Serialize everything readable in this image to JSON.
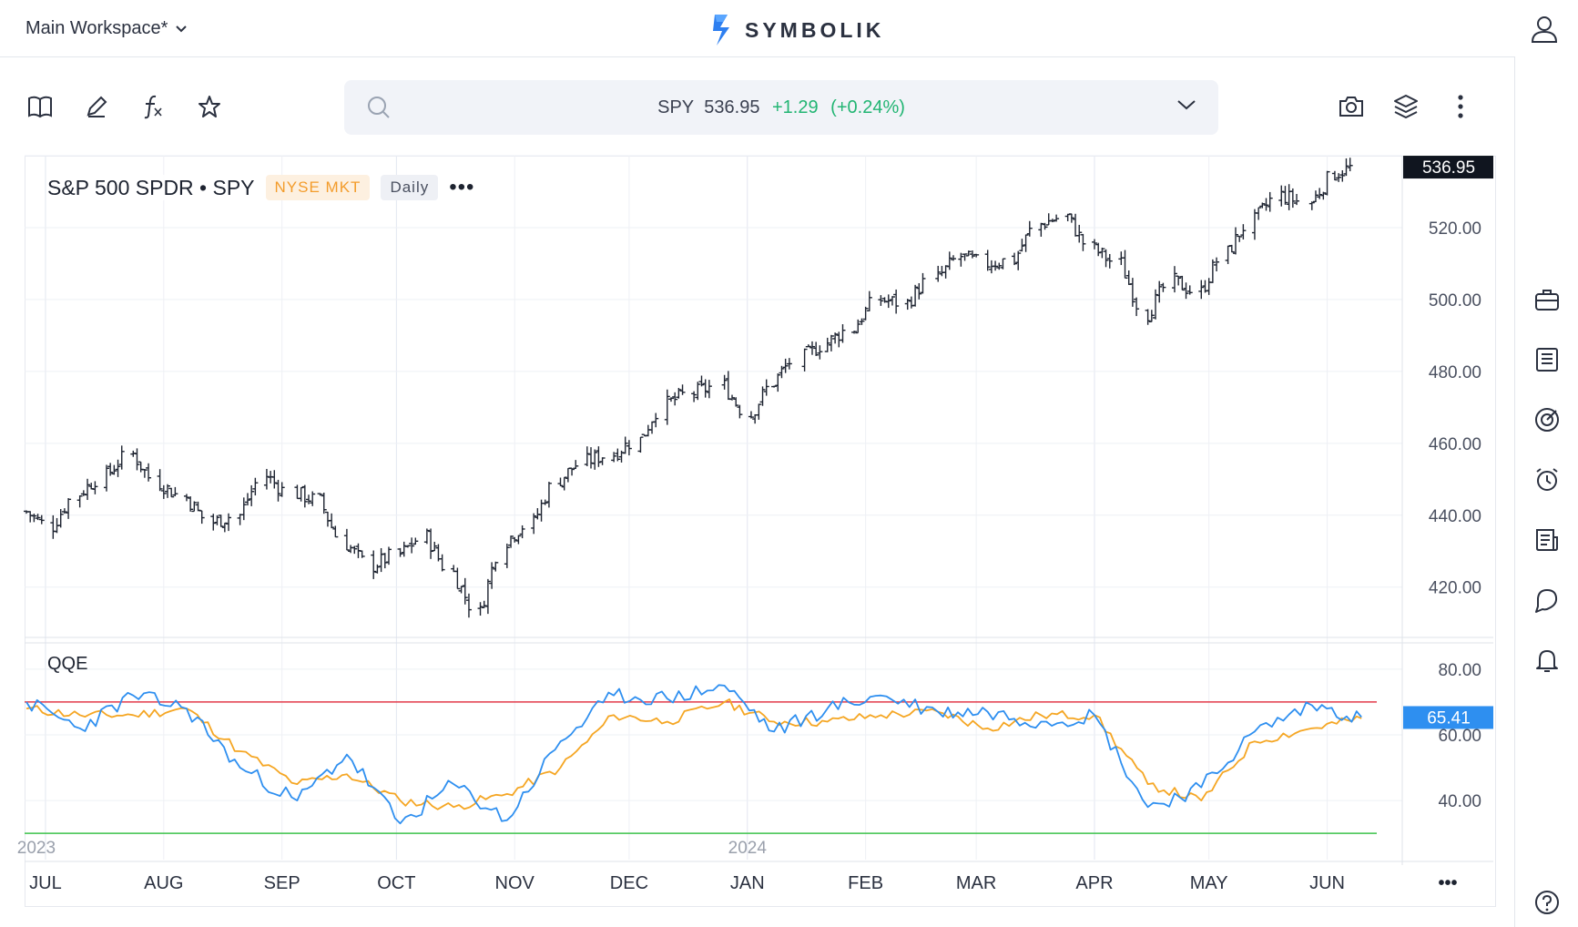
{
  "header": {
    "workspace": "Main Workspace*",
    "brand": "SYMBOLIK"
  },
  "search": {
    "symbol": "SPY",
    "price": "536.95",
    "change": "+1.29",
    "change_pct": "(+0.24%)"
  },
  "legend": {
    "title": "S&P 500 SPDR • SPY",
    "exchange": "NYSE MKT",
    "interval": "Daily",
    "more": "•••"
  },
  "indicator": {
    "name": "QQE"
  },
  "x_axis": {
    "months": [
      "JUL",
      "AUG",
      "SEP",
      "OCT",
      "NOV",
      "DEC",
      "JAN",
      "FEB",
      "MAR",
      "APR",
      "MAY",
      "JUN"
    ],
    "years": [
      "2023",
      "2024"
    ],
    "more": "•••"
  },
  "price_axis": {
    "labels": [
      "520.00",
      "500.00",
      "480.00",
      "460.00",
      "440.00",
      "420.00"
    ],
    "last_price": "536.95"
  },
  "qqe_axis": {
    "labels": [
      "80.00",
      "60.00",
      "40.00"
    ],
    "last_value": "65.41"
  },
  "colors": {
    "positive": "#22b573",
    "exchange": "#f39c2b",
    "qqe_fast": "#2e8ff0",
    "qqe_slow": "#f5a623",
    "upper_line": "#e23a4a",
    "lower_line": "#3cc24a",
    "price_tag_bg": "#10151f",
    "qqe_tag_bg": "#2e8ff0"
  },
  "chart_data": [
    {
      "type": "line",
      "subtype": "ohlc-bars",
      "title": "S&P 500 SPDR • SPY",
      "series": [
        {
          "name": "SPY",
          "x": [
            "2023-06-26",
            "2023-07-03",
            "2023-07-10",
            "2023-07-17",
            "2023-07-24",
            "2023-07-31",
            "2023-08-07",
            "2023-08-14",
            "2023-08-21",
            "2023-08-28",
            "2023-09-05",
            "2023-09-11",
            "2023-09-18",
            "2023-09-25",
            "2023-10-02",
            "2023-10-09",
            "2023-10-16",
            "2023-10-23",
            "2023-10-30",
            "2023-11-06",
            "2023-11-13",
            "2023-11-20",
            "2023-11-27",
            "2023-12-04",
            "2023-12-11",
            "2023-12-18",
            "2023-12-26",
            "2024-01-02",
            "2024-01-08",
            "2024-01-16",
            "2024-01-22",
            "2024-01-29",
            "2024-02-05",
            "2024-02-12",
            "2024-02-20",
            "2024-02-26",
            "2024-03-04",
            "2024-03-11",
            "2024-03-18",
            "2024-03-25",
            "2024-04-01",
            "2024-04-08",
            "2024-04-15",
            "2024-04-22",
            "2024-04-29",
            "2024-05-06",
            "2024-05-13",
            "2024-05-20",
            "2024-05-28",
            "2024-06-03",
            "2024-06-10"
          ],
          "values": [
            441,
            437,
            446,
            451,
            457,
            449,
            445,
            438,
            440,
            451,
            446,
            444,
            432,
            426,
            429,
            434,
            424,
            413,
            433,
            438,
            450,
            455,
            457,
            461,
            471,
            474,
            476,
            468,
            477,
            484,
            488,
            492,
            500,
            499,
            506,
            512,
            510,
            511,
            521,
            523,
            514,
            510,
            496,
            505,
            502,
            513,
            522,
            529,
            527,
            535,
            537
          ]
        }
      ],
      "ylim": [
        406,
        540
      ],
      "y_ticks": [
        420,
        440,
        460,
        480,
        500,
        520
      ]
    },
    {
      "type": "line",
      "title": "QQE",
      "series": [
        {
          "name": "QQE",
          "x": [
            "2023-06-26",
            "2023-07-10",
            "2023-07-24",
            "2023-08-07",
            "2023-08-21",
            "2023-09-05",
            "2023-09-18",
            "2023-10-02",
            "2023-10-16",
            "2023-10-30",
            "2023-11-13",
            "2023-11-27",
            "2023-12-11",
            "2023-12-26",
            "2024-01-08",
            "2024-01-22",
            "2024-02-05",
            "2024-02-20",
            "2024-03-04",
            "2024-03-18",
            "2024-04-01",
            "2024-04-15",
            "2024-04-29",
            "2024-05-13",
            "2024-05-28",
            "2024-06-10"
          ],
          "values": [
            70,
            62,
            72,
            68,
            50,
            40,
            54,
            33,
            45,
            34,
            58,
            72,
            71,
            75,
            61,
            68,
            72,
            67,
            67,
            64,
            66,
            38,
            44,
            61,
            69,
            65.41
          ]
        },
        {
          "name": "QQE signal",
          "x": [
            "2023-06-26",
            "2023-07-10",
            "2023-07-24",
            "2023-08-07",
            "2023-08-21",
            "2023-09-05",
            "2023-09-18",
            "2023-10-02",
            "2023-10-16",
            "2023-10-30",
            "2023-11-13",
            "2023-11-27",
            "2023-12-11",
            "2023-12-26",
            "2024-01-08",
            "2024-01-22",
            "2024-02-05",
            "2024-02-20",
            "2024-03-04",
            "2024-03-18",
            "2024-04-01",
            "2024-04-15",
            "2024-04-29",
            "2024-05-13",
            "2024-05-28",
            "2024-06-10"
          ],
          "values": [
            68,
            66,
            66,
            68,
            55,
            45,
            48,
            40,
            38,
            42,
            50,
            66,
            64,
            70,
            64,
            64,
            66,
            67,
            62,
            66,
            66,
            45,
            40,
            58,
            62,
            65
          ]
        }
      ],
      "reference_lines": [
        70,
        30
      ],
      "ylim": [
        22,
        88
      ],
      "y_ticks": [
        40,
        60,
        80
      ]
    }
  ]
}
